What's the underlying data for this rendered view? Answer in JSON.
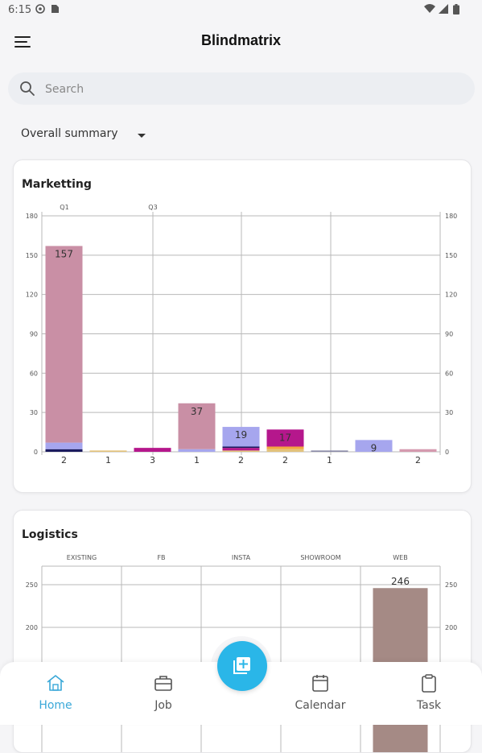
{
  "status": {
    "time": "6:15"
  },
  "app": {
    "title": "Blindmatrix"
  },
  "search": {
    "placeholder": "Search"
  },
  "summary": {
    "selected": "Overall summary"
  },
  "colors": {
    "accent": "#2ab6e8",
    "nav_active": "#3aa8d8"
  },
  "marketing": {
    "title": "Marketting",
    "chart_data": {
      "type": "bar",
      "stacked": true,
      "top_labels": [
        "Q1",
        "Q3"
      ],
      "ylim": [
        0,
        180
      ],
      "yticks": [
        0,
        30,
        60,
        90,
        120,
        150,
        180
      ],
      "grid": true,
      "bars": [
        {
          "total": 157,
          "total_label": "157",
          "segments": [
            {
              "value": 2,
              "color": "#1a1a5e"
            },
            {
              "value": 5,
              "color": "#a6a6ee"
            },
            {
              "value": 150,
              "color": "#c98fa5"
            }
          ],
          "x_label": "2"
        },
        {
          "total": 1,
          "total_label": "",
          "segments": [
            {
              "value": 1,
              "color": "#e3c27a"
            }
          ],
          "x_label": "1"
        },
        {
          "total": 3,
          "total_label": "",
          "segments": [
            {
              "value": 3,
              "color": "#b5178c"
            }
          ],
          "x_label": "3"
        },
        {
          "total": 37,
          "total_label": "37",
          "segments": [
            {
              "value": 2,
              "color": "#a6a6ee"
            },
            {
              "value": 35,
              "color": "#c98fa5"
            }
          ],
          "x_label": "1"
        },
        {
          "total": 19,
          "total_label": "19",
          "segments": [
            {
              "value": 1,
              "color": "#e3c27a"
            },
            {
              "value": 2,
              "color": "#b5178c"
            },
            {
              "value": 1,
              "color": "#1a1a5e"
            },
            {
              "value": 15,
              "color": "#a6a6ee"
            }
          ],
          "x_label": "2"
        },
        {
          "total": 17,
          "total_label": "17",
          "segments": [
            {
              "value": 2,
              "color": "#e3c27a"
            },
            {
              "value": 2,
              "color": "#f2a640"
            },
            {
              "value": 13,
              "color": "#b5178c"
            }
          ],
          "x_label": "2"
        },
        {
          "total": 1,
          "total_label": "",
          "segments": [
            {
              "value": 1,
              "color": "#8a8aa8"
            }
          ],
          "x_label": "1"
        },
        {
          "total": 9,
          "total_label": "9",
          "segments": [
            {
              "value": 9,
              "color": "#a6a6ee"
            }
          ],
          "x_label": ""
        },
        {
          "total": 2,
          "total_label": "",
          "segments": [
            {
              "value": 2,
              "color": "#d59aaf"
            }
          ],
          "x_label": "2"
        }
      ]
    }
  },
  "logistics": {
    "title": "Logistics",
    "chart_data": {
      "type": "bar",
      "categories": [
        "EXISTING",
        "FB",
        "INSTA",
        "SHOWROOM",
        "WEB"
      ],
      "values": [
        0,
        0,
        0,
        0,
        246
      ],
      "value_labels": [
        "",
        "",
        "",
        "",
        "246"
      ],
      "visible_yticks": [
        200,
        250
      ],
      "bar_color": "#a58a85",
      "grid": true
    }
  },
  "nav": {
    "home": "Home",
    "job": "Job",
    "calendar": "Calendar",
    "task": "Task"
  }
}
